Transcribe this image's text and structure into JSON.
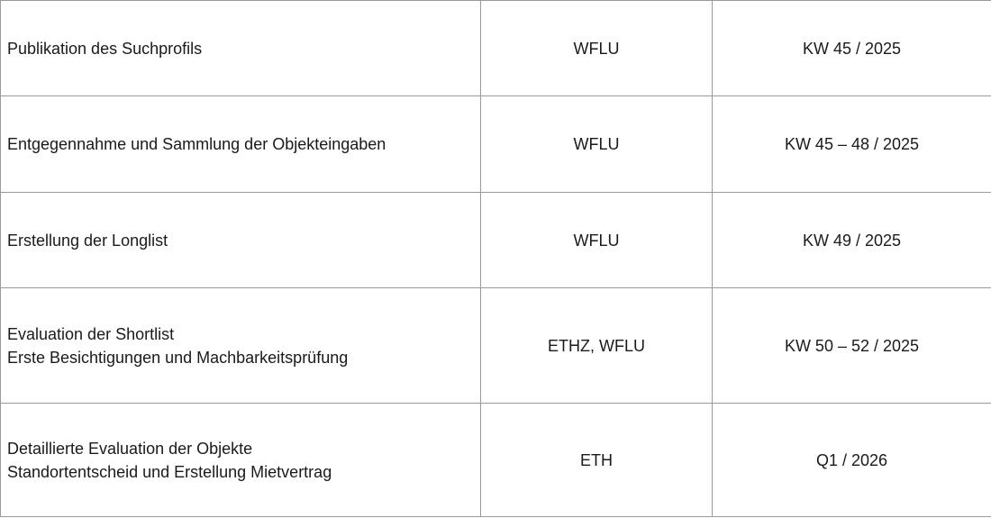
{
  "rows": [
    {
      "task": [
        "Publikation des Suchprofils"
      ],
      "responsible": "WFLU",
      "timing": "KW 45 / 2025"
    },
    {
      "task": [
        "Entgegennahme und Sammlung der Objekteingaben"
      ],
      "responsible": "WFLU",
      "timing": "KW 45 – 48 / 2025"
    },
    {
      "task": [
        "Erstellung der Longlist"
      ],
      "responsible": "WFLU",
      "timing": "KW 49 / 2025"
    },
    {
      "task": [
        "Evaluation der Shortlist",
        "Erste Besichtigungen und Machbarkeitsprüfung"
      ],
      "responsible": "ETHZ, WFLU",
      "timing": "KW 50 – 52 / 2025"
    },
    {
      "task": [
        "Detaillierte Evaluation der Objekte",
        "Standortentscheid und Erstellung Mietvertrag"
      ],
      "responsible": "ETH",
      "timing": "Q1 / 2026"
    }
  ]
}
